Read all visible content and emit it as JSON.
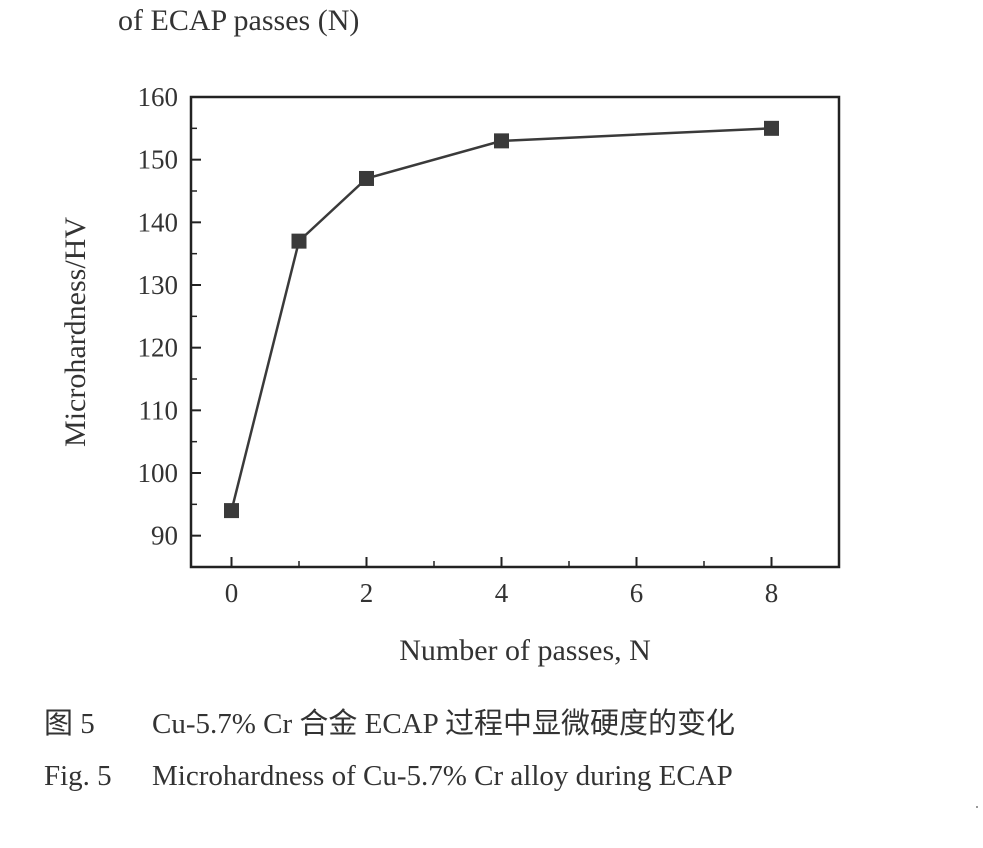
{
  "top_fragment": "of ECAP passes (N)",
  "caption_cn": {
    "figure": "图 5",
    "text": "Cu-5.7% Cr 合金 ECAP 过程中显微硬度的变化"
  },
  "caption_en": {
    "figure": "Fig. 5",
    "text": "Microhardness of Cu-5.7% Cr alloy during ECAP"
  },
  "chart_data": {
    "type": "line",
    "xlabel": "Number of passes, N",
    "ylabel": "Microhardness/HV",
    "xlim": [
      -0.6,
      9.0
    ],
    "ylim": [
      85,
      160
    ],
    "x_ticks": [
      0,
      2,
      4,
      6,
      8
    ],
    "y_ticks": [
      90,
      100,
      110,
      120,
      130,
      140,
      150,
      160
    ],
    "grid": false,
    "marker": "square",
    "colors": {
      "line": "#3a3a3a",
      "marker": "#3a3a3a",
      "axis": "#222222"
    },
    "series": [
      {
        "x": [
          0,
          1,
          2,
          4,
          8
        ],
        "y": [
          94,
          137,
          147,
          153,
          155
        ]
      }
    ]
  }
}
